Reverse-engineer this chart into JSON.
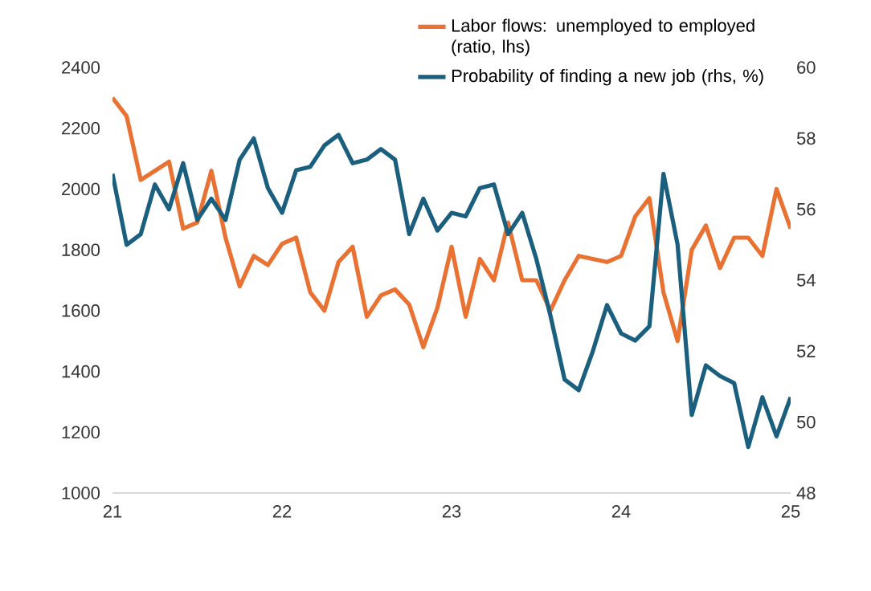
{
  "chart_data": {
    "type": "line",
    "legend": "top",
    "grid": false,
    "x": [
      21.0,
      21.0833,
      21.1667,
      21.25,
      21.3333,
      21.4167,
      21.5,
      21.5833,
      21.6667,
      21.75,
      21.8333,
      21.9167,
      22.0,
      22.0833,
      22.1667,
      22.25,
      22.3333,
      22.4167,
      22.5,
      22.5833,
      22.6667,
      22.75,
      22.8333,
      22.9167,
      23.0,
      23.0833,
      23.1667,
      23.25,
      23.3333,
      23.4167,
      23.5,
      23.5833,
      23.6667,
      23.75,
      23.8333,
      23.9167,
      24.0,
      24.0833,
      24.1667,
      24.25,
      24.3333,
      24.4167,
      24.5,
      24.5833,
      24.6667,
      24.75,
      24.8333,
      24.9167,
      25.0
    ],
    "xlim": [
      21,
      25
    ],
    "xticks": [
      21,
      22,
      23,
      24,
      25
    ],
    "ylim": [
      1000,
      2400
    ],
    "yticks": [
      1000,
      1200,
      1400,
      1600,
      1800,
      2000,
      2200,
      2400
    ],
    "y2lim": [
      48,
      60
    ],
    "y2ticks": [
      48,
      50,
      52,
      54,
      56,
      58,
      60
    ],
    "series": [
      {
        "name": "Labor flows: unemployed to employed (ratio, lhs)",
        "color": "#e97132",
        "values": [
          2300,
          2240,
          2030,
          2060,
          2090,
          1870,
          1890,
          2060,
          1840,
          1680,
          1780,
          1750,
          1820,
          1840,
          1660,
          1600,
          1760,
          1810,
          1580,
          1650,
          1670,
          1620,
          1480,
          1610,
          1810,
          1580,
          1770,
          1700,
          1890,
          1700,
          1700,
          1600,
          1700,
          1780,
          1770,
          1760,
          1780,
          1910,
          1970,
          1660,
          1500,
          1800,
          1880,
          1740,
          1840,
          1840,
          1780,
          2000,
          1870
        ]
      },
      {
        "name": "Probability of finding a new job (rhs, %)",
        "color": "#1b5f7e",
        "axis": "y2",
        "values": [
          57.0,
          55.0,
          55.3,
          56.7,
          56.0,
          57.3,
          55.7,
          56.3,
          55.7,
          57.4,
          58.0,
          56.6,
          55.9,
          57.1,
          57.2,
          57.8,
          58.1,
          57.3,
          57.4,
          57.7,
          57.4,
          55.3,
          56.3,
          55.4,
          55.9,
          55.8,
          56.6,
          56.7,
          55.3,
          55.9,
          54.6,
          53.0,
          51.2,
          50.9,
          52.0,
          53.3,
          52.5,
          52.3,
          52.7,
          57.0,
          55.0,
          50.2,
          51.6,
          51.3,
          51.1,
          49.3,
          50.7,
          49.6,
          50.7
        ]
      }
    ]
  }
}
